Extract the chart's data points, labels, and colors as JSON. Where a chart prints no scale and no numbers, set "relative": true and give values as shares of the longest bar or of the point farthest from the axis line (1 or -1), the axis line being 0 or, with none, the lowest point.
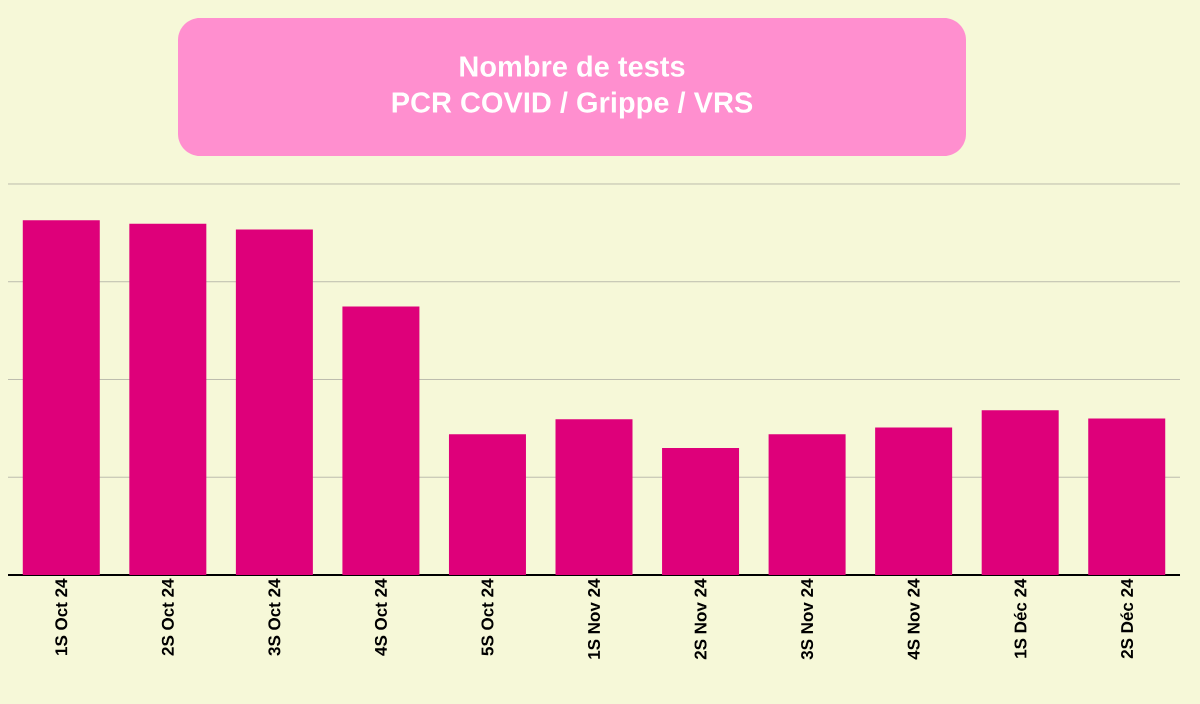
{
  "chart_data": {
    "type": "bar",
    "title": "Nombre de tests",
    "subtitle": "PCR COVID / Grippe / VRS",
    "categories": [
      "1S Oct 24",
      "2S Oct 24",
      "3S Oct 24",
      "4S Oct 24",
      "5S Oct 24",
      "1S Nov 24",
      "2S Nov 24",
      "3S Nov 24",
      "4S Nov 24",
      "1S Déc 24",
      "2S Déc 24"
    ],
    "values": [
      1,
      0.99,
      0.974,
      0.757,
      0.397,
      0.439,
      0.358,
      0.397,
      0.416,
      0.464,
      0.441
    ],
    "color": "#de007a",
    "relative": true,
    "grid": "y"
  }
}
